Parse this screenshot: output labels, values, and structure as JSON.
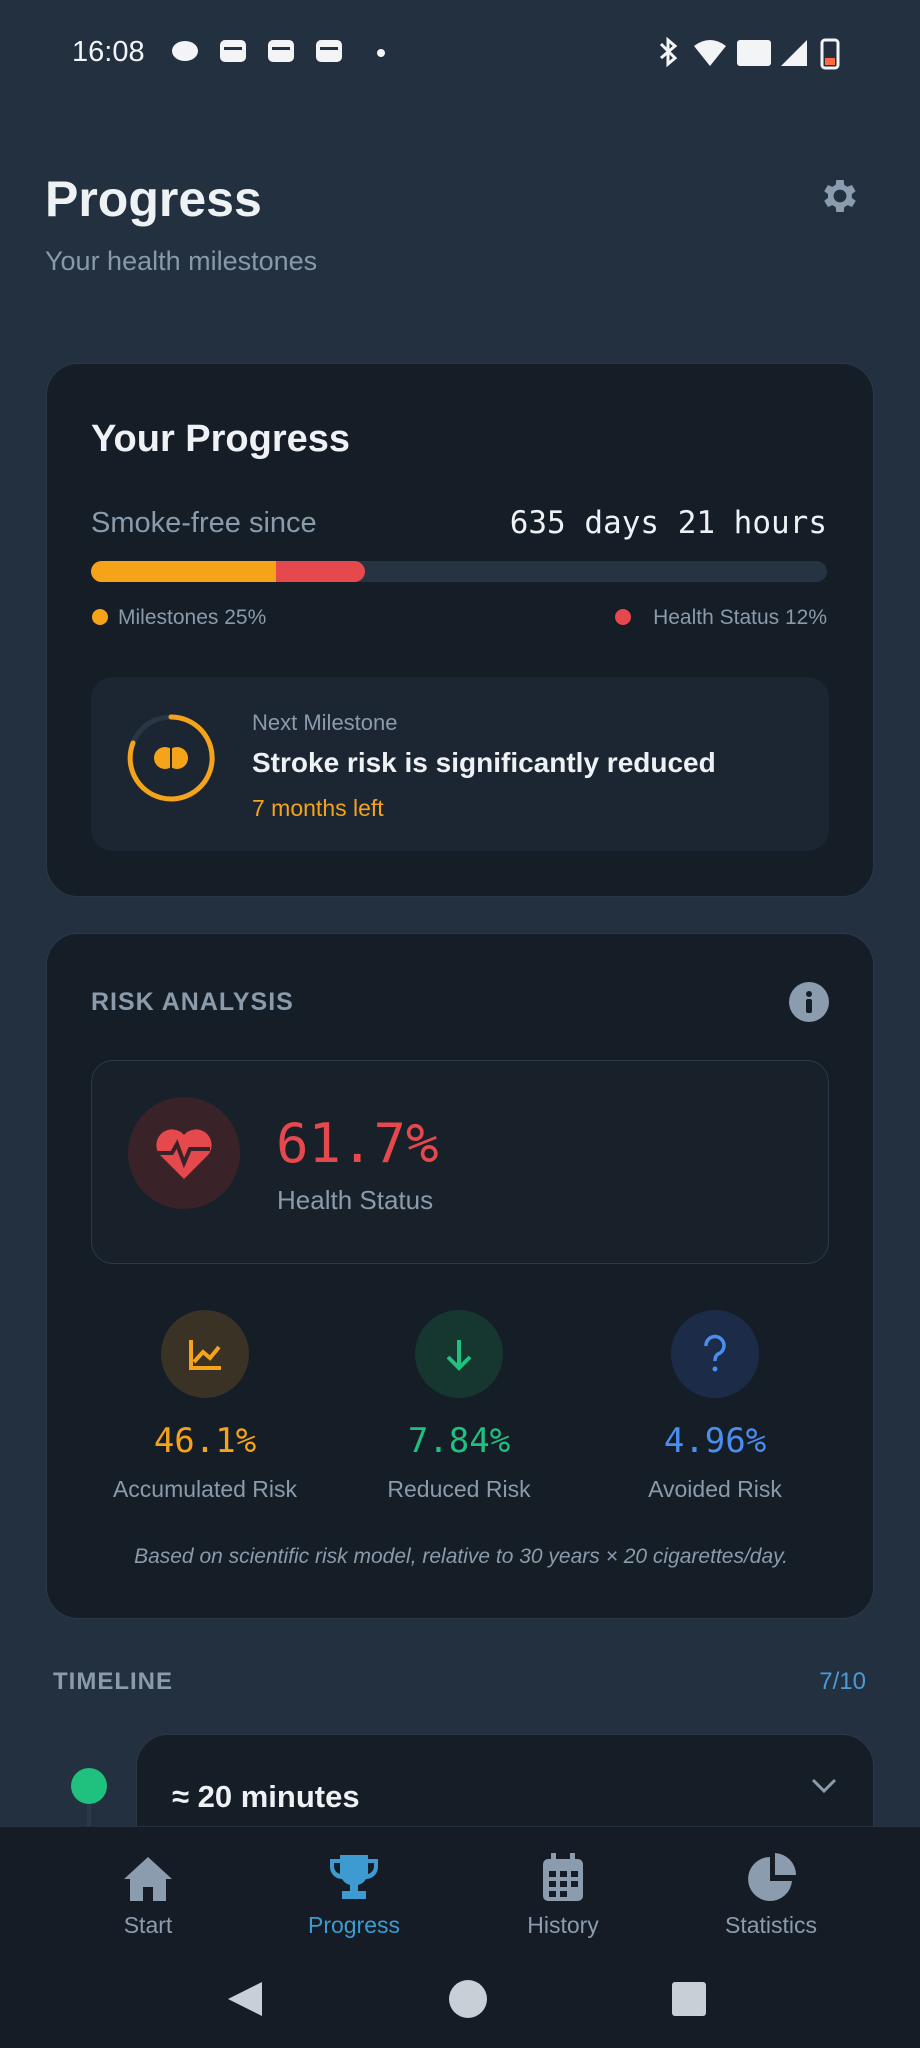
{
  "status_bar": {
    "time": "16:08"
  },
  "header": {
    "title": "Progress",
    "subtitle": "Your health milestones"
  },
  "progress_card": {
    "title": "Your Progress",
    "since_label": "Smoke-free since",
    "since_value": "635 days 21 hours",
    "legend": [
      "Milestones 25%",
      "Health Status 12%"
    ],
    "next_milestone": {
      "label": "Next Milestone",
      "title": "Stroke risk is significantly reduced",
      "remaining": "7 months left"
    }
  },
  "risk_card": {
    "title": "RISK ANALYSIS",
    "health": {
      "value": "61.7%",
      "label": "Health Status"
    },
    "metrics": [
      {
        "value": "46.1%",
        "label": "Accumulated Risk"
      },
      {
        "value": "7.84%",
        "label": "Reduced Risk"
      },
      {
        "value": "4.96%",
        "label": "Avoided Risk"
      }
    ],
    "note": "Based on scientific risk model, relative to 30 years × 20 cigarettes/day."
  },
  "timeline": {
    "title": "TIMELINE",
    "count": "7/10",
    "items": [
      {
        "time": "≈ 20 minutes"
      }
    ]
  },
  "nav": {
    "items": [
      "Start",
      "Progress",
      "History",
      "Statistics"
    ]
  }
}
